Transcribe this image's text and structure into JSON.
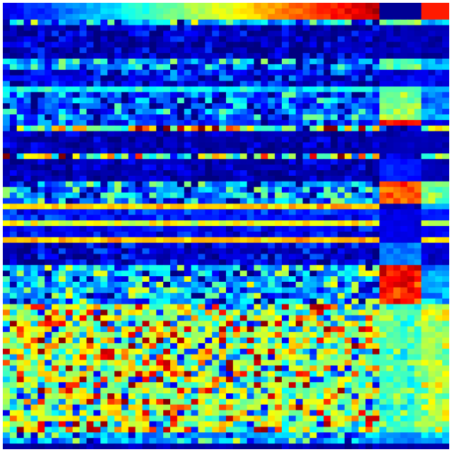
{
  "chart_data": {
    "type": "heatmap",
    "title": "",
    "xlabel": "",
    "ylabel": "",
    "colormap": "jet",
    "value_range": [
      0,
      1
    ],
    "n_rows": 80,
    "n_cols": 64,
    "column_groups": [
      {
        "id": "main",
        "cols": [
          0,
          53
        ]
      },
      {
        "id": "block",
        "cols": [
          54,
          59
        ]
      },
      {
        "id": "right",
        "cols": [
          60,
          63
        ]
      }
    ],
    "top_row_gradient": {
      "rows": [
        0,
        3
      ],
      "main_from": 0.1,
      "main_to": 0.95,
      "block": 0.02,
      "right": 0.85
    },
    "bands": [
      {
        "rows": [
          3,
          4
        ],
        "main": 0.3,
        "block": 0.5,
        "right": 0.3,
        "variation": 0.35
      },
      {
        "rows": [
          4,
          10
        ],
        "main": 0.05,
        "block": 0.05,
        "right": 0.05,
        "variation": 0.15
      },
      {
        "rows": [
          10,
          12
        ],
        "main": 0.25,
        "block": 0.45,
        "right": 0.3,
        "variation": 0.3
      },
      {
        "rows": [
          12,
          15
        ],
        "main": 0.1,
        "block": 0.1,
        "right": 0.1,
        "variation": 0.2
      },
      {
        "rows": [
          15,
          16
        ],
        "main": 0.38,
        "block": 0.45,
        "right": 0.3,
        "variation": 0.1
      },
      {
        "rows": [
          16,
          21
        ],
        "main": 0.2,
        "block": 0.5,
        "right": 0.25,
        "variation": 0.3
      },
      {
        "rows": [
          21,
          22
        ],
        "main": 0.15,
        "block": 0.85,
        "right": 0.1,
        "variation": 0.2
      },
      {
        "rows": [
          22,
          23
        ],
        "main": 0.55,
        "block": 0.05,
        "right": 0.6,
        "variation": 0.6
      },
      {
        "rows": [
          23,
          27
        ],
        "main": 0.05,
        "block": 0.05,
        "right": 0.05,
        "variation": 0.1
      },
      {
        "rows": [
          27,
          28
        ],
        "main": 0.5,
        "block": 0.05,
        "right": 0.55,
        "variation": 0.6
      },
      {
        "rows": [
          28,
          32
        ],
        "main": 0.05,
        "block": 0.15,
        "right": 0.05,
        "variation": 0.1
      },
      {
        "rows": [
          32,
          36
        ],
        "main": 0.25,
        "block": 0.8,
        "right": 0.5,
        "variation": 0.3
      },
      {
        "rows": [
          36,
          37
        ],
        "main": 0.68,
        "block": 0.05,
        "right": 0.3,
        "variation": 0.1
      },
      {
        "rows": [
          37,
          39
        ],
        "main": 0.15,
        "block": 0.1,
        "right": 0.15,
        "variation": 0.1
      },
      {
        "rows": [
          39,
          40
        ],
        "main": 0.6,
        "block": 0.1,
        "right": 0.55,
        "variation": 0.1
      },
      {
        "rows": [
          40,
          42
        ],
        "main": 0.12,
        "block": 0.1,
        "right": 0.12,
        "variation": 0.1
      },
      {
        "rows": [
          42,
          43
        ],
        "main": 0.68,
        "block": 0.1,
        "right": 0.65,
        "variation": 0.1
      },
      {
        "rows": [
          43,
          47
        ],
        "main": 0.08,
        "block": 0.25,
        "right": 0.08,
        "variation": 0.15
      },
      {
        "rows": [
          47,
          54
        ],
        "main": 0.3,
        "block": 0.85,
        "right": 0.3,
        "variation": 0.35
      },
      {
        "rows": [
          54,
          77
        ],
        "main": 0.55,
        "block": 0.45,
        "right": 0.55,
        "variation": 0.45
      },
      {
        "rows": [
          77,
          79
        ],
        "main": 0.3,
        "block": 0.25,
        "right": 0.3,
        "variation": 0.3
      },
      {
        "rows": [
          79,
          80
        ],
        "main": 0.04,
        "block": 0.04,
        "right": 0.04,
        "variation": 0.05
      }
    ]
  }
}
